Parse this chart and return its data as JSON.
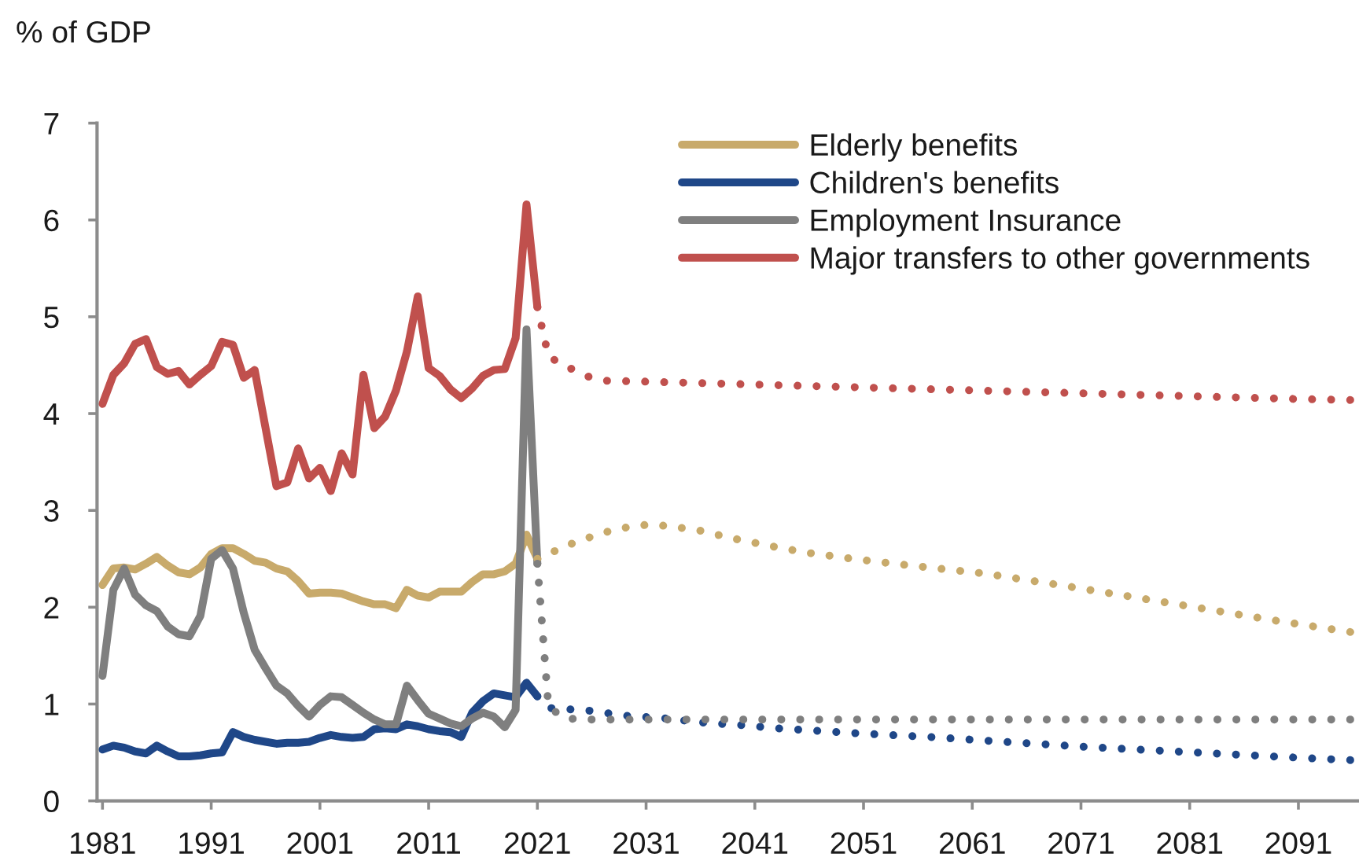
{
  "chart_data": {
    "type": "line",
    "ylabel": "% of GDP",
    "xlim": [
      1980.5,
      2096.5
    ],
    "xticks": [
      1981,
      1991,
      2001,
      2011,
      2021,
      2031,
      2041,
      2051,
      2061,
      2071,
      2081,
      2091
    ],
    "ylim": [
      0,
      7
    ],
    "yticks": [
      0,
      1,
      2,
      3,
      4,
      5,
      6,
      7
    ],
    "legend": "top right",
    "series": [
      {
        "name": "Elderly benefits",
        "color": "#c8aa6b",
        "line_style": "solid",
        "x": [
          1981,
          1982,
          1983,
          1984,
          1985,
          1986,
          1987,
          1988,
          1989,
          1990,
          1991,
          1992,
          1993,
          1994,
          1995,
          1996,
          1997,
          1998,
          1999,
          2000,
          2001,
          2002,
          2003,
          2004,
          2005,
          2006,
          2007,
          2008,
          2009,
          2010,
          2011,
          2012,
          2013,
          2014,
          2015,
          2016,
          2017,
          2018,
          2019,
          2020,
          2021
        ],
        "values": [
          2.23,
          2.4,
          2.41,
          2.39,
          2.45,
          2.52,
          2.43,
          2.36,
          2.34,
          2.41,
          2.55,
          2.61,
          2.61,
          2.55,
          2.48,
          2.46,
          2.4,
          2.37,
          2.27,
          2.14,
          2.15,
          2.15,
          2.14,
          2.1,
          2.06,
          2.03,
          2.03,
          1.99,
          2.18,
          2.12,
          2.1,
          2.16,
          2.16,
          2.16,
          2.26,
          2.34,
          2.34,
          2.37,
          2.45,
          2.75,
          2.5
        ]
      },
      {
        "name": "Children's benefits",
        "color": "#1f4788",
        "line_style": "solid",
        "x": [
          1981,
          1982,
          1983,
          1984,
          1985,
          1986,
          1987,
          1988,
          1989,
          1990,
          1991,
          1992,
          1993,
          1994,
          1995,
          1996,
          1997,
          1998,
          1999,
          2000,
          2001,
          2002,
          2003,
          2004,
          2005,
          2006,
          2007,
          2008,
          2009,
          2010,
          2011,
          2012,
          2013,
          2014,
          2015,
          2016,
          2017,
          2018,
          2019,
          2020,
          2021
        ],
        "values": [
          0.53,
          0.57,
          0.55,
          0.51,
          0.49,
          0.57,
          0.51,
          0.46,
          0.46,
          0.47,
          0.49,
          0.5,
          0.71,
          0.66,
          0.63,
          0.61,
          0.59,
          0.6,
          0.6,
          0.61,
          0.65,
          0.68,
          0.66,
          0.65,
          0.66,
          0.74,
          0.75,
          0.74,
          0.79,
          0.77,
          0.74,
          0.72,
          0.71,
          0.66,
          0.91,
          1.03,
          1.11,
          1.09,
          1.07,
          1.22,
          1.08
        ]
      },
      {
        "name": "Employment Insurance",
        "color": "#7f7f7f",
        "line_style": "solid",
        "x": [
          1981,
          1982,
          1983,
          1984,
          1985,
          1986,
          1987,
          1988,
          1989,
          1990,
          1991,
          1992,
          1993,
          1994,
          1995,
          1996,
          1997,
          1998,
          1999,
          2000,
          2001,
          2002,
          2003,
          2004,
          2005,
          2006,
          2007,
          2008,
          2009,
          2010,
          2011,
          2012,
          2013,
          2014,
          2015,
          2016,
          2017,
          2018,
          2019,
          2020,
          2021
        ],
        "values": [
          1.29,
          2.18,
          2.4,
          2.13,
          2.02,
          1.96,
          1.8,
          1.72,
          1.7,
          1.91,
          2.5,
          2.59,
          2.4,
          1.94,
          1.56,
          1.37,
          1.19,
          1.11,
          0.98,
          0.87,
          0.99,
          1.08,
          1.07,
          0.99,
          0.91,
          0.84,
          0.79,
          0.79,
          1.19,
          1.04,
          0.9,
          0.85,
          0.8,
          0.77,
          0.85,
          0.91,
          0.87,
          0.76,
          0.94,
          4.87,
          2.45
        ]
      },
      {
        "name": "Major transfers to other governments",
        "color": "#c0504d",
        "line_style": "solid",
        "x": [
          1981,
          1982,
          1983,
          1984,
          1985,
          1986,
          1987,
          1988,
          1989,
          1990,
          1991,
          1992,
          1993,
          1994,
          1995,
          1996,
          1997,
          1998,
          1999,
          2000,
          2001,
          2002,
          2003,
          2004,
          2005,
          2006,
          2007,
          2008,
          2009,
          2010,
          2011,
          2012,
          2013,
          2014,
          2015,
          2016,
          2017,
          2018,
          2019,
          2020,
          2021
        ],
        "values": [
          4.1,
          4.4,
          4.52,
          4.72,
          4.77,
          4.48,
          4.41,
          4.44,
          4.3,
          4.4,
          4.49,
          4.74,
          4.71,
          4.37,
          4.45,
          3.85,
          3.25,
          3.29,
          3.64,
          3.33,
          3.44,
          3.2,
          3.59,
          3.37,
          4.4,
          3.85,
          3.97,
          4.24,
          4.64,
          5.21,
          4.47,
          4.39,
          4.25,
          4.16,
          4.26,
          4.39,
          4.45,
          4.46,
          4.78,
          6.16,
          5.1
        ]
      },
      {
        "color": "#c8aa6b",
        "line_style": "dotted",
        "x": [
          2021,
          2022,
          2024,
          2026,
          2028,
          2030,
          2031,
          2033,
          2036,
          2039,
          2043,
          2046,
          2050,
          2053,
          2057,
          2062,
          2069,
          2075,
          2082,
          2089,
          2096
        ],
        "values": [
          2.5,
          2.55,
          2.65,
          2.73,
          2.8,
          2.84,
          2.85,
          2.84,
          2.79,
          2.71,
          2.62,
          2.56,
          2.5,
          2.46,
          2.41,
          2.35,
          2.23,
          2.12,
          1.99,
          1.86,
          1.74
        ]
      },
      {
        "color": "#1f4788",
        "line_style": "dotted",
        "x": [
          2021,
          2022,
          2026,
          2029,
          2033,
          2036,
          2040,
          2043,
          2050,
          2057,
          2064,
          2071,
          2078,
          2085,
          2092,
          2096
        ],
        "values": [
          1.08,
          0.96,
          0.93,
          0.88,
          0.85,
          0.81,
          0.78,
          0.75,
          0.7,
          0.66,
          0.61,
          0.56,
          0.52,
          0.48,
          0.44,
          0.42
        ]
      },
      {
        "color": "#7f7f7f",
        "line_style": "dotted",
        "x": [
          2021,
          2022,
          2023,
          2024,
          2025,
          2096
        ],
        "values": [
          2.45,
          1.0,
          0.88,
          0.85,
          0.84,
          0.84
        ]
      },
      {
        "color": "#c0504d",
        "line_style": "dotted",
        "x": [
          2021,
          2022,
          2023,
          2024,
          2025,
          2026,
          2027,
          2031,
          2041,
          2051,
          2061,
          2071,
          2081,
          2091,
          2096
        ],
        "values": [
          5.1,
          4.6,
          4.52,
          4.47,
          4.41,
          4.37,
          4.34,
          4.33,
          4.3,
          4.27,
          4.24,
          4.21,
          4.18,
          4.15,
          4.14
        ]
      }
    ]
  }
}
